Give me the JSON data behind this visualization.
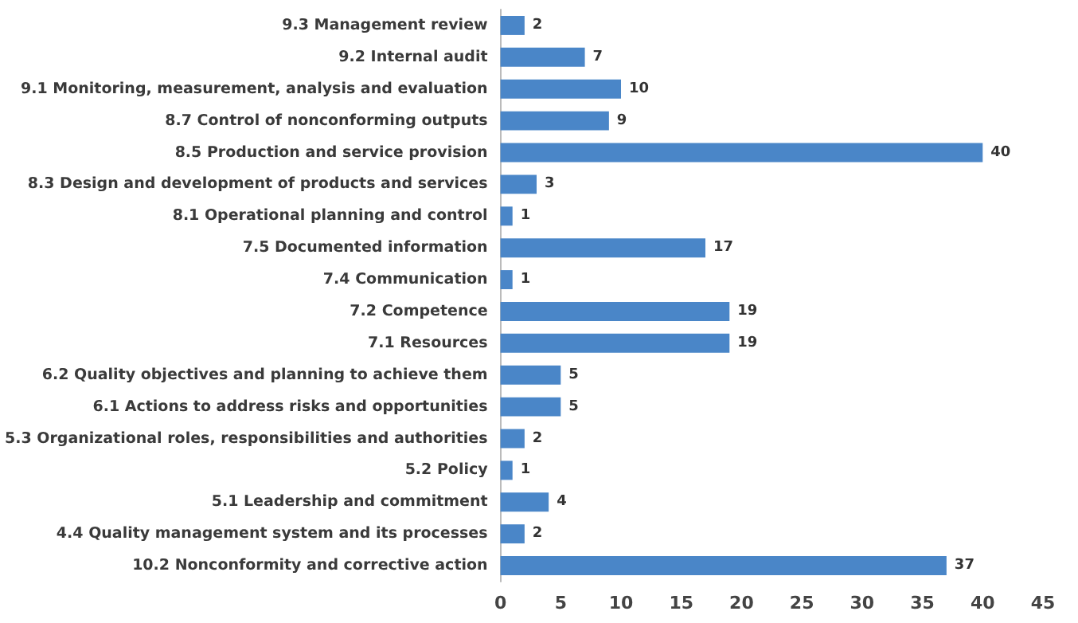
{
  "chart_data": {
    "type": "bar",
    "orientation": "horizontal",
    "categories": [
      "9.3 Management review",
      "9.2 Internal audit",
      "9.1 Monitoring, measurement, analysis and evaluation",
      "8.7 Control of nonconforming outputs",
      "8.5 Production and service provision",
      "8.3 Design and development of products and services",
      "8.1 Operational planning and control",
      "7.5 Documented information",
      "7.4 Communication",
      "7.2 Competence",
      "7.1 Resources",
      "6.2 Quality objectives and planning to achieve them",
      "6.1 Actions to address risks and opportunities",
      "5.3 Organizational roles, responsibilities and authorities",
      "5.2 Policy",
      "5.1 Leadership and commitment",
      "4.4 Quality management system and its processes",
      "10.2 Nonconformity and corrective action"
    ],
    "values": [
      2,
      7,
      10,
      9,
      40,
      3,
      1,
      17,
      1,
      19,
      19,
      5,
      5,
      2,
      1,
      4,
      2,
      37
    ],
    "color": "#4a86c8",
    "xlim": [
      0,
      45
    ],
    "xticks": [
      0,
      5,
      10,
      15,
      20,
      25,
      30,
      35,
      40,
      45
    ],
    "grid": false,
    "data_labels": true
  }
}
